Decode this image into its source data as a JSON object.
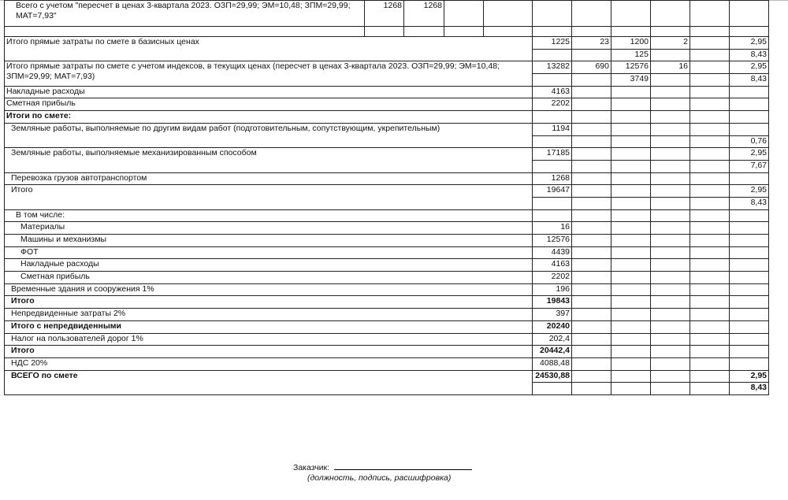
{
  "header_row": {
    "label": "Всего с учетом \"пересчет в ценах 3-квартала 2023. ОЗП=29,99; ЭМ=10,48; ЗПМ=29,99; МАТ=7,93\"",
    "values": [
      "1268",
      "1268",
      "",
      ""
    ]
  },
  "rows": [
    {
      "label": "Итого прямые затраты по смете в базисных ценах",
      "indent": 0,
      "bold": false,
      "values": [
        "1225",
        "23",
        "1200",
        "2",
        "",
        "2,95"
      ],
      "sub": [
        "",
        "",
        "125",
        "",
        "",
        "8,43"
      ]
    },
    {
      "label": "Итого прямые затраты по смете с учетом индексов, в текущих ценах (пересчет в ценах 3-квартала 2023. ОЗП=29,99; ЭМ=10,48; ЗПМ=29,99; МАТ=7,93)",
      "indent": 0,
      "bold": false,
      "values": [
        "13282",
        "690",
        "12576",
        "16",
        "",
        "2,95"
      ],
      "sub": [
        "",
        "",
        "3749",
        "",
        "",
        "8,43"
      ]
    },
    {
      "label": "Накладные расходы",
      "indent": 0,
      "bold": false,
      "values": [
        "4163",
        "",
        "",
        "",
        "",
        ""
      ]
    },
    {
      "label": "Сметная прибыль",
      "indent": 0,
      "bold": false,
      "values": [
        "2202",
        "",
        "",
        "",
        "",
        ""
      ]
    },
    {
      "label": "Итоги по смете:",
      "indent": 0,
      "bold": true,
      "values": [
        "",
        "",
        "",
        "",
        "",
        ""
      ]
    },
    {
      "label": "Земляные работы, выполняемые по другим видам работ (подготовительным, сопутствующим, укрепительным)",
      "indent": 1,
      "bold": false,
      "values": [
        "1194",
        "",
        "",
        "",
        "",
        ""
      ],
      "sub": [
        "",
        "",
        "",
        "",
        "",
        "0,76"
      ]
    },
    {
      "label": "Земляные работы, выполняемые механизированным способом",
      "indent": 1,
      "bold": false,
      "values": [
        "17185",
        "",
        "",
        "",
        "",
        "2,95"
      ],
      "sub": [
        "",
        "",
        "",
        "",
        "",
        "7,67"
      ]
    },
    {
      "label": "Перевозка грузов автотранспортом",
      "indent": 1,
      "bold": false,
      "values": [
        "1268",
        "",
        "",
        "",
        "",
        ""
      ]
    },
    {
      "label": "Итого",
      "indent": 1,
      "bold": false,
      "values": [
        "19647",
        "",
        "",
        "",
        "",
        "2,95"
      ],
      "sub": [
        "",
        "",
        "",
        "",
        "",
        "8,43"
      ]
    },
    {
      "label": "В том числе:",
      "indent": 2,
      "bold": false,
      "values": [
        "",
        "",
        "",
        "",
        "",
        ""
      ]
    },
    {
      "label": "Материалы",
      "indent": 3,
      "bold": false,
      "values": [
        "16",
        "",
        "",
        "",
        "",
        ""
      ]
    },
    {
      "label": "Машины и механизмы",
      "indent": 3,
      "bold": false,
      "values": [
        "12576",
        "",
        "",
        "",
        "",
        ""
      ]
    },
    {
      "label": "ФОТ",
      "indent": 3,
      "bold": false,
      "values": [
        "4439",
        "",
        "",
        "",
        "",
        ""
      ]
    },
    {
      "label": "Накладные расходы",
      "indent": 3,
      "bold": false,
      "values": [
        "4163",
        "",
        "",
        "",
        "",
        ""
      ]
    },
    {
      "label": "Сметная прибыль",
      "indent": 3,
      "bold": false,
      "values": [
        "2202",
        "",
        "",
        "",
        "",
        ""
      ]
    },
    {
      "label": "Временные здания и сооружения 1%",
      "indent": 1,
      "bold": false,
      "values": [
        "196",
        "",
        "",
        "",
        "",
        ""
      ]
    },
    {
      "label": "Итого",
      "indent": 1,
      "bold": true,
      "values": [
        "19843",
        "",
        "",
        "",
        "",
        ""
      ]
    },
    {
      "label": "Непредвиденные затраты 2%",
      "indent": 1,
      "bold": false,
      "values": [
        "397",
        "",
        "",
        "",
        "",
        ""
      ]
    },
    {
      "label": "Итого с непредвиденными",
      "indent": 1,
      "bold": true,
      "values": [
        "20240",
        "",
        "",
        "",
        "",
        ""
      ]
    },
    {
      "label": "Налог на пользователей дорог 1%",
      "indent": 1,
      "bold": false,
      "values": [
        "202,4",
        "",
        "",
        "",
        "",
        ""
      ]
    },
    {
      "label": "Итого",
      "indent": 1,
      "bold": true,
      "values": [
        "20442,4",
        "",
        "",
        "",
        "",
        ""
      ]
    },
    {
      "label": "НДС 20%",
      "indent": 1,
      "bold": false,
      "values": [
        "4088,48",
        "",
        "",
        "",
        "",
        ""
      ]
    },
    {
      "label": "ВСЕГО по смете",
      "indent": 1,
      "bold": true,
      "values": [
        "24530,88",
        "",
        "",
        "",
        "",
        "2,95"
      ],
      "sub": [
        "",
        "",
        "",
        "",
        "",
        "8,43"
      ]
    }
  ],
  "signature": {
    "label": "Заказчик:",
    "note": "(должность, подпись, расшифровка)"
  }
}
